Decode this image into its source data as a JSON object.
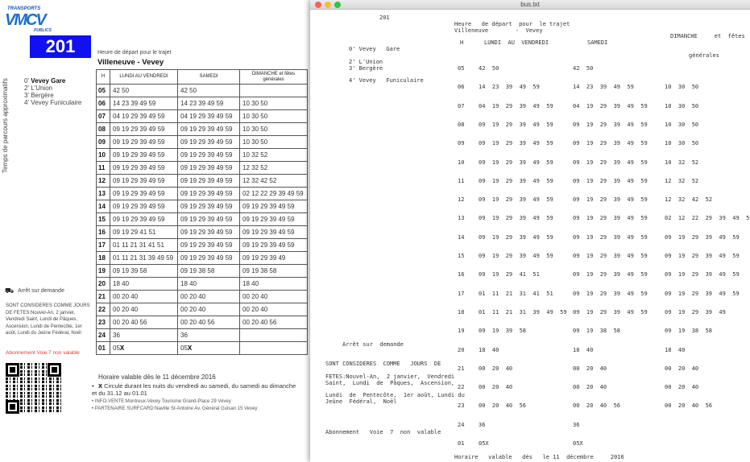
{
  "pdf": {
    "logo": {
      "top": "TRANSPORTS",
      "main": "VMCV",
      "bottom": "PUBLICS"
    },
    "route_number": "201",
    "side_label": "Temps de parcours approximatifs",
    "stops": [
      {
        "time": "0'",
        "name": "Vevey Gare"
      },
      {
        "time": "2'",
        "name": "L'Union"
      },
      {
        "time": "3'",
        "name": "Bergère"
      },
      {
        "time": "4'",
        "name": "Vevey Funiculaire"
      }
    ],
    "heading": "Heure de départ pour le trajet",
    "trip": "Villeneuve - Vevey",
    "columns": [
      "H",
      "LUNDI AU VENDREDI",
      "SAMEDI",
      "DIMANCHE et fêtes générales"
    ],
    "rows": [
      {
        "h": "05",
        "lundi": "42 50",
        "samedi": "42 50",
        "dimanche": ""
      },
      {
        "h": "06",
        "lundi": "14 23 39 49 59",
        "samedi": "14 23 39 49 59",
        "dimanche": "10 30 50"
      },
      {
        "h": "07",
        "lundi": "04 19 29 39 49 59",
        "samedi": "04 19 29 39 49 59",
        "dimanche": "10 30 50"
      },
      {
        "h": "08",
        "lundi": "09 19 29 39 49 59",
        "samedi": "09 19 29 39 49 59",
        "dimanche": "10 30 50"
      },
      {
        "h": "09",
        "lundi": "09 19 29 39 49 59",
        "samedi": "09 19 29 39 49 59",
        "dimanche": "10 30 50"
      },
      {
        "h": "10",
        "lundi": "09 19 29 39 49 59",
        "samedi": "09 19 29 39 49 59",
        "dimanche": "10 32 52"
      },
      {
        "h": "11",
        "lundi": "09 19 29 39 49 59",
        "samedi": "09 19 29 39 49 59",
        "dimanche": "12 32 52"
      },
      {
        "h": "12",
        "lundi": "09 19 29 39 49 59",
        "samedi": "09 19 29 39 49 59",
        "dimanche": "12 32 42 52"
      },
      {
        "h": "13",
        "lundi": "09 19 29 39 49 59",
        "samedi": "09 19 29 39 49 59",
        "dimanche": "02 12 22 29 39 49 59"
      },
      {
        "h": "14",
        "lundi": "09 19 29 39 49 59",
        "samedi": "09 19 29 39 49 59",
        "dimanche": "09 19 29 39 49 59"
      },
      {
        "h": "15",
        "lundi": "09 19 29 39 49 59",
        "samedi": "09 19 29 39 49 59",
        "dimanche": "09 19 29 39 49 59"
      },
      {
        "h": "16",
        "lundi": "09 19 29 41 51",
        "samedi": "09 19 29 39 49 59",
        "dimanche": "09 19 29 39 49 59"
      },
      {
        "h": "17",
        "lundi": "01 11 21 31 41 51",
        "samedi": "09 19 29 39 49 59",
        "dimanche": "09 19 29 39 49 59"
      },
      {
        "h": "18",
        "lundi": "01 11 21 31 39 49 59",
        "samedi": "09 19 29 39 49 59",
        "dimanche": "09 19 29 39 49"
      },
      {
        "h": "19",
        "lundi": "09 19 39 58",
        "samedi": "09 19 38 58",
        "dimanche": "09 19 38 58"
      },
      {
        "h": "20",
        "lundi": "18 40",
        "samedi": "18 40",
        "dimanche": "18 40"
      },
      {
        "h": "21",
        "lundi": "00 20 40",
        "samedi": "00 20 40",
        "dimanche": "00 20 40"
      },
      {
        "h": "22",
        "lundi": "00 20 40",
        "samedi": "00 20 40",
        "dimanche": "00 20 40"
      },
      {
        "h": "23",
        "lundi": "00 20 40 56",
        "samedi": "00 20 40 56",
        "dimanche": "00 20 40 56"
      },
      {
        "h": "24",
        "lundi": "36",
        "samedi": "36",
        "dimanche": ""
      },
      {
        "h": "01",
        "lundi": "05X",
        "samedi": "05X",
        "dimanche": ""
      }
    ],
    "on_request": "Arrêt sur demande",
    "holidays": "SONT CONSIDERES COMME JOURS DE FETES:Nouvel-An, 2 janvier, Vendredi Saint, Lundi de Pâques, Ascension, Lundi de Pentecôte, 1er août, Lundi du Jeûne Fédéral, Noël",
    "subscription": "Abonnement Voie 7 non valable",
    "valid_from": "Horaire valable dès le 11 décembre 2016",
    "x_note_mark": "X",
    "x_note": "Circule durant les nuits du vendredi au samedi, du samedi au dimanche et du 31.12 au 01.01",
    "info": "INFO-VENTE:Montreux-Vevey Tourisme Grand-Place 29 Vevey",
    "partner": "PARTENAIRE SURFCARD:Naville St-Antoine Av. Général Guisan 15 Vevey",
    "accent_color": "#1010f0",
    "subscription_color": "#e8393a"
  },
  "editor": {
    "title": "bus.txt",
    "route": "201",
    "heading1": "Heure   de départ  pour  le trajet",
    "heading2": "Villeneuve        -  Vevey",
    "col_h": "H",
    "col_lundi": "LUNDI  AU  VENDREDI",
    "col_samedi": "SAMEDI",
    "col_dimanche": "DIMANCHE     et  fêtes",
    "col_dimanche2": "générales",
    "stops": [
      "0' Vevey   Gare",
      "2' L'Union",
      "3' Bergère",
      "4' Vevey   Funiculaire"
    ],
    "on_request": "Arrêt sur  demande",
    "holidays": [
      "SONT CONSIDERES  COMME   JOURS  DE",
      "FETES:Nouvel-An,  2 janvier,  Vendredi",
      "Saint,  Lundi  de  Pâques,  Ascension,",
      "Lundi  de  Pentecôte,  1er août, Lundi du",
      "Jeûne  Fédéral,  Noël"
    ],
    "subscription": "Abonnement   Voie  7  non  valable",
    "valid_from": "Horaire   valable   dès   le 11  décembre     2016"
  }
}
